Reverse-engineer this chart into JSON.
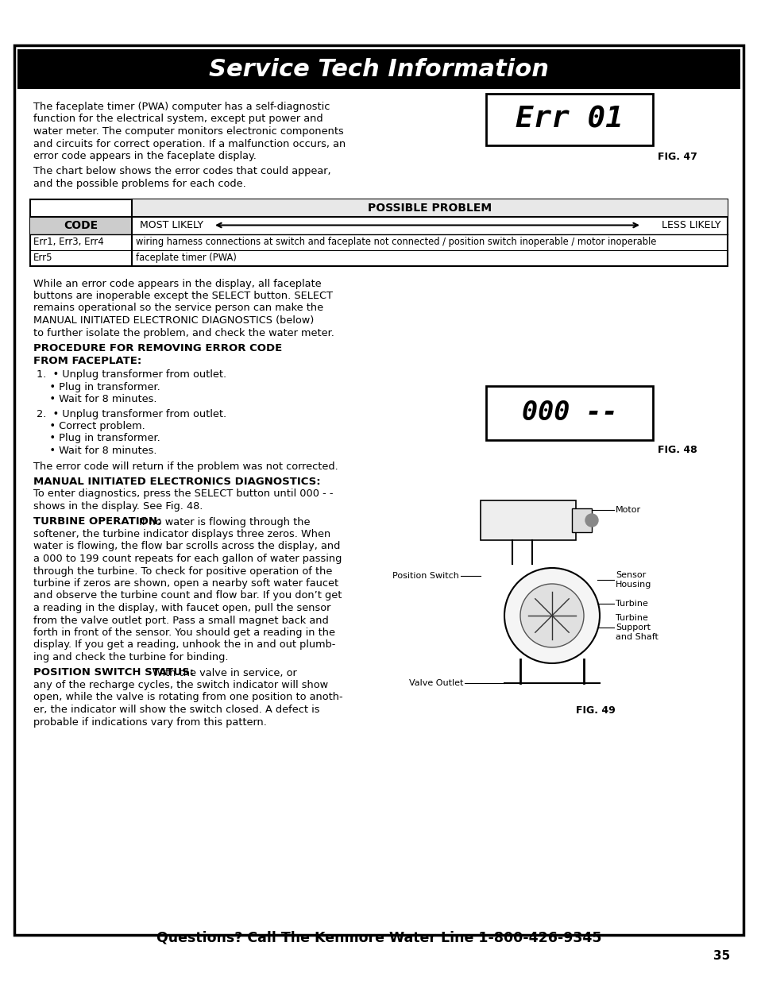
{
  "title": "Service Tech Information",
  "footer": "Questions? Call The Kenmore Water Line 1-800-426-9345",
  "page_num": "35",
  "intro_para1": "The faceplate timer (PWA) computer has a self-diagnostic\nfunction for the electrical system, except put power and\nwater meter. The computer monitors electronic components\nand circuits for correct operation. If a malfunction occurs, an\nerror code appears in the faceplate display.",
  "intro_para2": "The chart below shows the error codes that could appear,\nand the possible problems for each code.",
  "fig47_display": "Err 01",
  "fig47_label": "FIG. 47",
  "fig48_display": "000 --",
  "fig48_label": "FIG. 48",
  "fig49_label": "FIG. 49",
  "table_header": "POSSIBLE PROBLEM",
  "table_col1_header": "CODE",
  "table_most_likely": "MOST LIKELY",
  "table_less_likely": "LESS LIKELY",
  "table_rows": [
    [
      "Err1, Err3, Err4",
      "wiring harness connections at switch and faceplate not connected / position switch inoperable / motor inoperable"
    ],
    [
      "Err5",
      "faceplate timer (PWA)"
    ]
  ],
  "middle_para": "While an error code appears in the display, all faceplate\nbuttons are inoperable except the SELECT button. SELECT\nremains operational so the service person can make the\nMANUAL INITIATED ELECTRONIC DIAGNOSTICS (below)\nto further isolate the problem, and check the water meter.",
  "proc_heading1": "PROCEDURE FOR REMOVING ERROR CODE",
  "proc_heading2": "FROM FACEPLATE:",
  "step1_lines": [
    "1.  • Unplug transformer from outlet.",
    "    • Plug in transformer.",
    "    • Wait for 8 minutes."
  ],
  "step2_lines": [
    "2.  • Unplug transformer from outlet.",
    "    • Correct problem.",
    "    • Plug in transformer.",
    "    • Wait for 8 minutes."
  ],
  "error_return": "The error code will return if the problem was not corrected.",
  "manual_heading": "MANUAL INITIATED ELECTRONICS DIAGNOSTICS:",
  "manual_body1": "To enter diagnostics, press the SELECT button until 000 - -",
  "manual_body2": "shows in the display. See Fig. 48.",
  "turbine_heading": "TURBINE OPERATION:",
  "turbine_body": [
    "If no water is flowing through the",
    "softener, the turbine indicator displays three zeros. When",
    "water is flowing, the flow bar scrolls across the display, and",
    "a 000 to 199 count repeats for each gallon of water passing",
    "through the turbine. To check for positive operation of the",
    "turbine if zeros are shown, open a nearby soft water faucet",
    "and observe the turbine count and flow bar. If you don’t get",
    "a reading in the display, with faucet open, pull the sensor",
    "from the valve outlet port. Pass a small magnet back and",
    "forth in front of the sensor. You should get a reading in the",
    "display. If you get a reading, unhook the in and out plumb-",
    "ing and check the turbine for binding."
  ],
  "position_heading": "POSITION SWITCH STATUS:",
  "position_body": [
    "With the valve in service, or",
    "any of the recharge cycles, the switch indicator will show",
    "open, while the valve is rotating from one position to anoth-",
    "er, the indicator will show the switch closed. A defect is",
    "probable if indications vary from this pattern."
  ],
  "bg_color": "#ffffff",
  "border_color": "#000000",
  "title_bg": "#000000",
  "title_fg": "#ffffff"
}
